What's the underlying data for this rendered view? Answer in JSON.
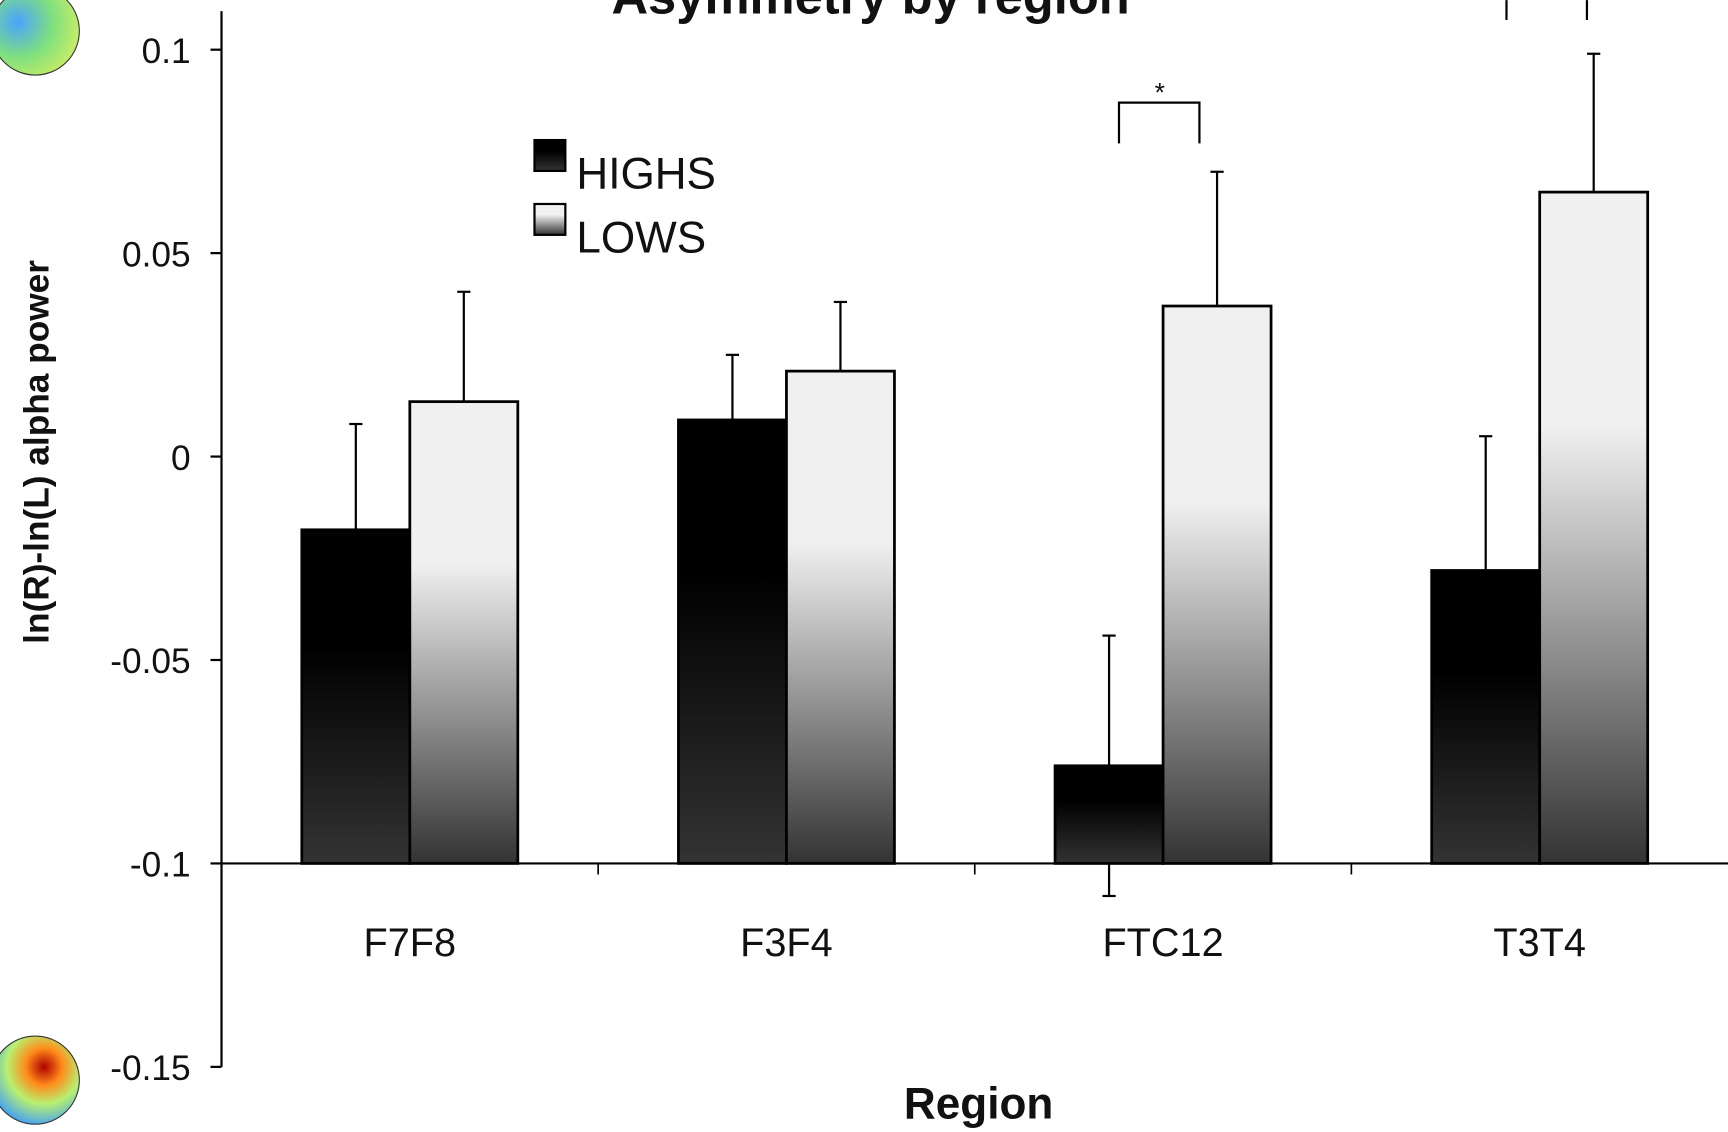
{
  "chart_data": {
    "type": "bar",
    "title": "Asymmetry by region",
    "x_label": "Region",
    "y_label": "ln(R)-ln(L) alpha power",
    "categories": [
      "F7F8",
      "F3F4",
      "FTC12",
      "T3T4"
    ],
    "series": [
      {
        "name": "HIGHS",
        "color": "#000000",
        "values": [
          -0.018,
          0.009,
          -0.076,
          -0.028
        ],
        "errors": [
          0.026,
          0.016,
          0.032,
          0.033
        ]
      },
      {
        "name": "LOWS",
        "color": "#f0f0f0",
        "values": [
          0.0135,
          0.021,
          0.037,
          0.065
        ],
        "errors": [
          0.027,
          0.017,
          0.033,
          0.034
        ]
      }
    ],
    "ylim": [
      -0.15,
      0.1
    ],
    "yticks": [
      0.1,
      0.05,
      0,
      -0.05,
      -0.1,
      -0.15
    ],
    "x_axis_at": -0.1,
    "annotation": "*",
    "gradient": true,
    "legend": "upper left"
  }
}
